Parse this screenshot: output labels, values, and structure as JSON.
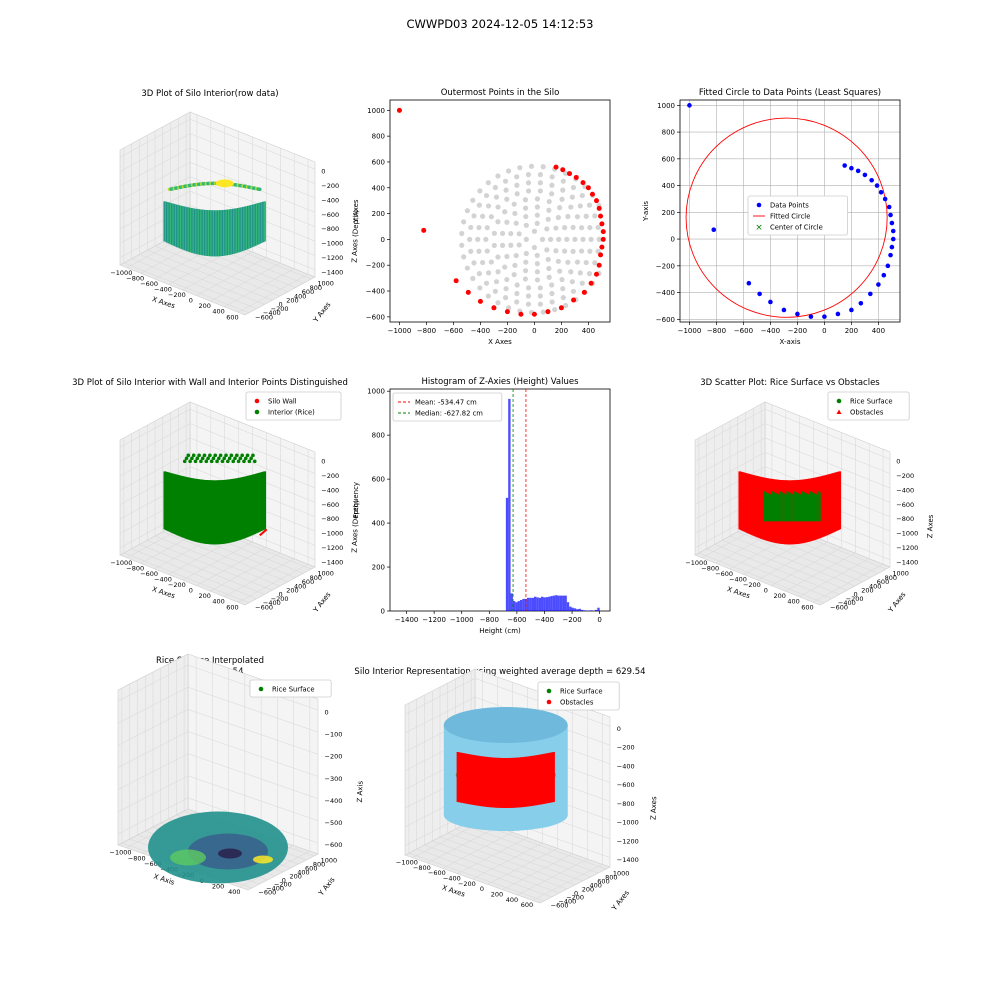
{
  "figure": {
    "suptitle": "CWWPD03 2024-12-05 14:12:53"
  },
  "chart_data": [
    {
      "id": "p1",
      "type": "scatter3d",
      "title": "3D Plot of Silo Interior(row data)",
      "xlabel": "X Axes",
      "ylabel": "Y Axes",
      "zlabel": "Z Axes (Depth)",
      "xticks": [
        "−1000",
        "−800",
        "−600",
        "−400",
        "−200",
        "0",
        "200",
        "400",
        "600"
      ],
      "yticks": [
        "−600",
        "−400",
        "−200",
        "0",
        "200",
        "400",
        "600",
        "800",
        "1000"
      ],
      "zticks": [
        "0",
        "−200",
        "−400",
        "−600",
        "−800",
        "−1000",
        "−1200",
        "−1400"
      ],
      "colors": [
        "#440154",
        "#31688e",
        "#21918c",
        "#35b779",
        "#b5de2b",
        "#fde725"
      ]
    },
    {
      "id": "p2",
      "type": "scatter",
      "title": "Outermost Points in the Silo",
      "xlabel": "X Axes",
      "ylabel": "Y Axes",
      "xlim": [
        -1070,
        560
      ],
      "ylim": [
        -640,
        1080
      ],
      "xticks": [
        -1000,
        -800,
        -600,
        -400,
        -200,
        0,
        200,
        400
      ],
      "yticks": [
        -600,
        -400,
        -200,
        0,
        200,
        400,
        600,
        800,
        1000
      ],
      "interior": {
        "center": [
          0,
          0
        ],
        "rings": [
          60,
          120,
          180,
          240,
          300,
          360,
          420,
          480,
          540
        ],
        "x_max": 480,
        "color": "#d3d3d3"
      },
      "outer_points": [
        [
          -1000,
          1000
        ],
        [
          -820,
          70
        ],
        [
          -580,
          -320
        ],
        [
          -490,
          -410
        ],
        [
          -400,
          -480
        ],
        [
          -300,
          -530
        ],
        [
          -200,
          -560
        ],
        [
          -100,
          -580
        ],
        [
          0,
          -580
        ],
        [
          100,
          -560
        ],
        [
          200,
          -530
        ],
        [
          290,
          -470
        ],
        [
          370,
          -410
        ],
        [
          420,
          -340
        ],
        [
          460,
          -270
        ],
        [
          480,
          -200
        ],
        [
          490,
          -120
        ],
        [
          500,
          -60
        ],
        [
          510,
          0
        ],
        [
          510,
          60
        ],
        [
          500,
          120
        ],
        [
          490,
          180
        ],
        [
          480,
          240
        ],
        [
          460,
          300
        ],
        [
          430,
          350
        ],
        [
          400,
          400
        ],
        [
          360,
          440
        ],
        [
          310,
          480
        ],
        [
          260,
          510
        ],
        [
          210,
          540
        ],
        [
          160,
          560
        ]
      ],
      "outer_color": "#ff0000"
    },
    {
      "id": "p3",
      "type": "scatter",
      "title": "Fitted Circle to Data Points (Least Squares)",
      "xlabel": "X-axis",
      "ylabel": "Y-axis",
      "xlim": [
        -1070,
        560
      ],
      "ylim": [
        -620,
        1040
      ],
      "xticks": [
        -1000,
        -800,
        -600,
        -400,
        -200,
        0,
        200,
        400
      ],
      "yticks": [
        -600,
        -400,
        -200,
        0,
        200,
        400,
        600,
        800,
        1000
      ],
      "grid": true,
      "data_points": [
        [
          -1000,
          1000
        ],
        [
          -820,
          70
        ],
        [
          -560,
          -330
        ],
        [
          -480,
          -410
        ],
        [
          -400,
          -470
        ],
        [
          -300,
          -530
        ],
        [
          -200,
          -560
        ],
        [
          -100,
          -580
        ],
        [
          0,
          -580
        ],
        [
          100,
          -560
        ],
        [
          200,
          -530
        ],
        [
          270,
          -480
        ],
        [
          340,
          -410
        ],
        [
          400,
          -340
        ],
        [
          440,
          -270
        ],
        [
          470,
          -200
        ],
        [
          490,
          -120
        ],
        [
          500,
          -60
        ],
        [
          510,
          0
        ],
        [
          510,
          60
        ],
        [
          500,
          120
        ],
        [
          490,
          180
        ],
        [
          480,
          240
        ],
        [
          450,
          300
        ],
        [
          420,
          350
        ],
        [
          390,
          400
        ],
        [
          350,
          440
        ],
        [
          300,
          480
        ],
        [
          250,
          510
        ],
        [
          200,
          530
        ],
        [
          150,
          550
        ]
      ],
      "circle": {
        "center": [
          -280,
          160
        ],
        "radius": 745
      },
      "legend": [
        "Data Points",
        "Fitted Circle",
        "Center of Circle"
      ],
      "legend_loc": "center",
      "colors": {
        "points": "#0000ff",
        "circle": "#ff0000",
        "center": "#008000"
      }
    },
    {
      "id": "p4",
      "type": "scatter3d",
      "title": "3D Plot of Silo Interior with Wall and Interior Points Distinguished",
      "xlabel": "X Axes",
      "ylabel": "Y Axes",
      "zlabel": "Z Axes (Depth)",
      "xticks": [
        "−1000",
        "−800",
        "−600",
        "−400",
        "−200",
        "0",
        "200",
        "400",
        "600"
      ],
      "yticks": [
        "−600",
        "−400",
        "−200",
        "0",
        "200",
        "400",
        "600",
        "800",
        "1000"
      ],
      "zticks": [
        "0",
        "−200",
        "−400",
        "−600",
        "−800",
        "−1000",
        "−1200",
        "−1400"
      ],
      "legend": [
        "Silo Wall",
        "Interior (Rice)"
      ],
      "legend_loc": "upper right",
      "colors": {
        "wall": "#ff0000",
        "interior": "#008000"
      }
    },
    {
      "id": "p5",
      "type": "bar",
      "title": "Histogram of Z-Axies (Height) Values",
      "xlabel": "Height (cm)",
      "ylabel": "Frequency",
      "xlim": [
        -1520,
        75
      ],
      "ylim": [
        0,
        1010
      ],
      "xticks": [
        -1400,
        -1200,
        -1000,
        -800,
        -600,
        -400,
        -200,
        0
      ],
      "yticks": [
        0,
        200,
        400,
        600,
        800,
        1000
      ],
      "bin_width": 17,
      "bins": [
        [
          -680,
          515
        ],
        [
          -663,
          965
        ],
        [
          -646,
          80
        ],
        [
          -629,
          45
        ],
        [
          -612,
          40
        ],
        [
          -595,
          45
        ],
        [
          -578,
          50
        ],
        [
          -561,
          55
        ],
        [
          -544,
          55
        ],
        [
          -527,
          60
        ],
        [
          -510,
          60
        ],
        [
          -493,
          60
        ],
        [
          -476,
          65
        ],
        [
          -459,
          62
        ],
        [
          -442,
          60
        ],
        [
          -425,
          65
        ],
        [
          -408,
          62
        ],
        [
          -391,
          63
        ],
        [
          -374,
          65
        ],
        [
          -357,
          68
        ],
        [
          -340,
          70
        ],
        [
          -323,
          72
        ],
        [
          -306,
          70
        ],
        [
          -289,
          70
        ],
        [
          -272,
          70
        ],
        [
          -255,
          70
        ],
        [
          -238,
          40
        ],
        [
          -221,
          20
        ],
        [
          -204,
          15
        ],
        [
          -187,
          12
        ],
        [
          -170,
          8
        ],
        [
          -153,
          10
        ],
        [
          -136,
          5
        ],
        [
          -119,
          3
        ],
        [
          -102,
          2
        ],
        [
          -85,
          2
        ],
        [
          -68,
          3
        ],
        [
          -34,
          5
        ],
        [
          -17,
          15
        ]
      ],
      "mean": -534.47,
      "median": -627.82,
      "legend": [
        "Mean: -534.47 cm",
        "Median: -627.82 cm"
      ],
      "legend_loc": "upper left",
      "colors": {
        "bars": "#0000ff",
        "mean": "#ff0000",
        "median": "#008000"
      }
    },
    {
      "id": "p6",
      "type": "scatter3d",
      "title": "3D Scatter Plot: Rice Surface vs Obstacles",
      "xlabel": "X Axes",
      "ylabel": "Y Axes",
      "zlabel": "Z Axes",
      "xticks": [
        "−1000",
        "−800",
        "−600",
        "−400",
        "−200",
        "0",
        "200",
        "400",
        "600"
      ],
      "yticks": [
        "−600",
        "−400",
        "−200",
        "0",
        "200",
        "400",
        "600",
        "800",
        "1000"
      ],
      "zticks": [
        "0",
        "−200",
        "−400",
        "−600",
        "−800",
        "−1000",
        "−1200",
        "−1400"
      ],
      "legend": [
        "Rice Surface",
        "Obstacles"
      ],
      "legend_loc": "upper right",
      "colors": {
        "rice": "#008000",
        "obstacles": "#ff0000"
      }
    },
    {
      "id": "p7",
      "type": "surface3d",
      "title": "Rice Surface Interpolated",
      "subtitle": "depth = 629.54",
      "xlabel": "X Axis",
      "ylabel": "Y Axis",
      "zlabel": "Z Axis",
      "xticks": [
        "−1000",
        "−800",
        "−600",
        "−400",
        "−200",
        "0",
        "200",
        "400"
      ],
      "yticks": [
        "−600",
        "−400",
        "−200",
        "0",
        "200",
        "400",
        "600",
        "800",
        "1000"
      ],
      "zticks": [
        "0",
        "−100",
        "−200",
        "−300",
        "−400",
        "−500",
        "−600"
      ],
      "legend": [
        "Rice Surface"
      ],
      "legend_loc": "upper right",
      "colors": {
        "legend": "#008000",
        "surface": [
          "#3b528b",
          "#21918c",
          "#5ec962",
          "#fde725"
        ]
      }
    },
    {
      "id": "p8",
      "type": "scatter3d",
      "title": "Silo Interior Representation using weighted average depth = 629.54",
      "xlabel": "X Axes",
      "ylabel": "Y Axes",
      "zlabel": "Z Axes",
      "xticks": [
        "−1000",
        "−800",
        "−600",
        "−400",
        "−200",
        "0",
        "200",
        "400",
        "600"
      ],
      "yticks": [
        "−600",
        "−400",
        "−200",
        "0",
        "200",
        "400",
        "600",
        "800",
        "1000"
      ],
      "zticks": [
        "0",
        "−200",
        "−400",
        "−600",
        "−800",
        "−1000",
        "−1200",
        "−1400"
      ],
      "legend": [
        "Rice Surface",
        "Obstacles"
      ],
      "legend_loc": "upper center",
      "colors": {
        "rice": "#008000",
        "obstacles": "#ff0000",
        "wall": "#87ceeb"
      }
    }
  ]
}
